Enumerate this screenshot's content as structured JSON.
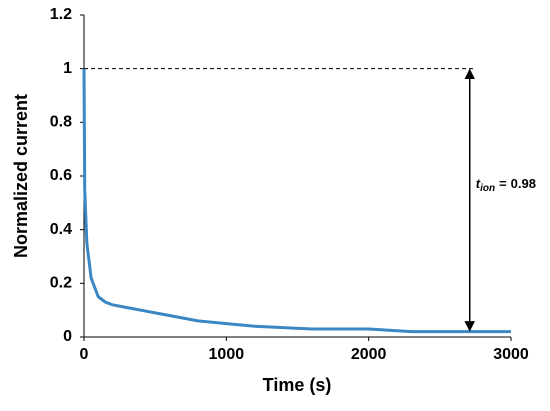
{
  "chart_data": {
    "type": "line",
    "xlabel": "Time (s)",
    "ylabel": "Normalized current",
    "x": [
      0,
      5,
      20,
      50,
      100,
      150,
      200,
      300,
      400,
      500,
      600,
      800,
      1000,
      1200,
      1600,
      2000,
      2300,
      3000
    ],
    "series": [
      {
        "color": "#3a87c4",
        "values": [
          1.0,
          0.55,
          0.35,
          0.22,
          0.15,
          0.13,
          0.12,
          0.11,
          0.1,
          0.09,
          0.08,
          0.06,
          0.05,
          0.04,
          0.03,
          0.03,
          0.02,
          0.02
        ]
      }
    ],
    "xlim": [
      0,
      3000
    ],
    "xticks": [
      0,
      1000,
      2000,
      3000
    ],
    "ylim": [
      0,
      1.2
    ],
    "yticks": [
      0,
      0.2,
      0.4,
      0.6,
      0.8,
      1,
      1.2
    ],
    "grid": false,
    "reference_line": {
      "y": 1,
      "x": [
        0,
        2750
      ]
    },
    "arrow": {
      "x": 2710,
      "from": 1,
      "to": 0.02
    },
    "annotation": {
      "symbol": "t",
      "subscript": "ion",
      "relation": "=",
      "value": 0.98
    }
  }
}
